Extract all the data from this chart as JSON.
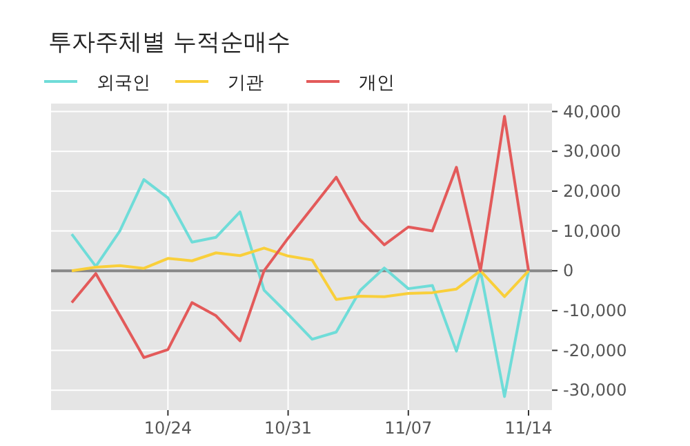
{
  "chart_data": {
    "type": "line",
    "title": "투자주체별 누적순매수",
    "categories": [
      null,
      null,
      null,
      null,
      "10/24",
      null,
      null,
      null,
      null,
      "10/31",
      null,
      null,
      null,
      null,
      "11/07",
      null,
      null,
      null,
      null,
      "11/14"
    ],
    "series": [
      {
        "name": "외국인",
        "color": "#6fdcd8",
        "values": [
          9200,
          1100,
          10000,
          22900,
          18300,
          7200,
          8400,
          14800,
          -4900,
          -10900,
          -17200,
          -15400,
          -4900,
          700,
          -4500,
          -3700,
          -20200,
          0,
          -31600,
          0
        ]
      },
      {
        "name": "기관",
        "color": "#f9cf3a",
        "values": [
          0,
          900,
          1300,
          600,
          3100,
          2500,
          4500,
          3800,
          5700,
          3700,
          2700,
          -7200,
          -6400,
          -6500,
          -5700,
          -5500,
          -4600,
          0,
          -6500,
          0
        ]
      },
      {
        "name": "개인",
        "color": "#e35a5a",
        "values": [
          -8000,
          -700,
          -11200,
          -21800,
          -19800,
          -8000,
          -11300,
          -17600,
          0,
          8200,
          15800,
          23500,
          12700,
          6500,
          11000,
          10000,
          26000,
          0,
          38800,
          0
        ]
      }
    ],
    "ylim": [
      -35000,
      42000
    ],
    "yticks": [
      {
        "value": -30000,
        "label": "-30,000"
      },
      {
        "value": -20000,
        "label": "-20,000"
      },
      {
        "value": -10000,
        "label": "-10,000"
      },
      0,
      {
        "value": 10000,
        "label": "10,000"
      },
      {
        "value": 20000,
        "label": "20,000"
      },
      {
        "value": 30000,
        "label": "30,000"
      },
      {
        "value": 40000,
        "label": "40,000"
      }
    ],
    "ref_lines": [
      {
        "axis": "y",
        "value": 0,
        "color": "#888888"
      }
    ],
    "grid": true,
    "legend": "top left",
    "marker": "none",
    "line_style": "solid"
  }
}
